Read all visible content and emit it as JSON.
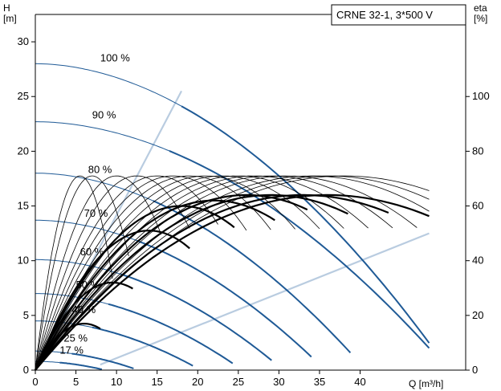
{
  "chart_data": {
    "type": "line",
    "title_box": "CRNE 32-1, 3*500 V",
    "y_left_label": [
      "H",
      "[m]"
    ],
    "y_right_label": [
      "eta",
      "[%]"
    ],
    "x_label": "Q [m³/h]",
    "x_ticks": [
      0,
      5,
      10,
      15,
      20,
      25,
      30,
      35,
      40
    ],
    "y_left_ticks": [
      0,
      5,
      10,
      15,
      20,
      25,
      30
    ],
    "y_right_ticks": [
      0,
      20,
      40,
      60,
      80,
      100
    ],
    "xlim": [
      0,
      53
    ],
    "ylim_left": [
      0,
      32.5
    ],
    "ylim_right": [
      0,
      130
    ],
    "grid": false,
    "colors": {
      "head_curve": "#1f5a96",
      "head_max_curve": "#1f5a96",
      "head_bound": "#b9cce0",
      "eta_curve": "#000000",
      "axis": "#000000"
    },
    "speed_labels": [
      {
        "text": "100 %",
        "x": 8.0,
        "y": 28.2
      },
      {
        "text": "90 %",
        "x": 7.0,
        "y": 23.0
      },
      {
        "text": "80 %",
        "x": 6.5,
        "y": 18.0
      },
      {
        "text": "70 %",
        "x": 6.0,
        "y": 14.0
      },
      {
        "text": "60 %",
        "x": 5.5,
        "y": 10.5
      },
      {
        "text": "50 %",
        "x": 5.0,
        "y": 7.5
      },
      {
        "text": "40 %",
        "x": 4.5,
        "y": 5.2
      },
      {
        "text": "25 %",
        "x": 3.5,
        "y": 2.6
      },
      {
        "text": "17 %",
        "x": 3.0,
        "y": 1.5
      }
    ],
    "head_curves": [
      {
        "name": "100 %",
        "h0": 28.0,
        "qmax": 48.5,
        "qsplit": 18.0
      },
      {
        "name": "90 %",
        "h0": 22.7,
        "qmax": 48.5,
        "qsplit": 16.5
      },
      {
        "name": "80 %",
        "h0": 18.0,
        "qmax": 38.8,
        "qsplit": 14.5
      },
      {
        "name": "70 %",
        "h0": 13.7,
        "qmax": 34.0,
        "qsplit": 12.5
      },
      {
        "name": "60 %",
        "h0": 10.1,
        "qmax": 29.1,
        "qsplit": 10.5
      },
      {
        "name": "50 %",
        "h0": 7.0,
        "qmax": 24.3,
        "qsplit": 9.0
      },
      {
        "name": "40 %",
        "h0": 4.5,
        "qmax": 19.4,
        "qsplit": 7.0
      },
      {
        "name": "25 %",
        "h0": 1.75,
        "qmax": 12.1,
        "qsplit": 4.5
      },
      {
        "name": "17 %",
        "h0": 0.8,
        "qmax": 8.2,
        "qsplit": 3.0
      }
    ],
    "head_curve_100_max": {
      "h0": 28.0,
      "qend": 48.5,
      "hend": 12.5
    },
    "eta_curves": [
      {
        "q0": 0.0,
        "qpeak": 5.5,
        "etapeak": 71,
        "qend": 9.5,
        "bold": false
      },
      {
        "q0": 0.0,
        "qpeak": 7.0,
        "etapeak": 71,
        "qend": 11.5,
        "bold": false
      },
      {
        "q0": 0.0,
        "qpeak": 10.0,
        "etapeak": 71,
        "qend": 15.5,
        "bold": false
      },
      {
        "q0": 0.0,
        "qpeak": 12.5,
        "etapeak": 71,
        "qend": 19.0,
        "bold": false
      },
      {
        "q0": 0.0,
        "qpeak": 15.0,
        "etapeak": 71,
        "qend": 22.5,
        "bold": false
      },
      {
        "q0": 0.0,
        "qpeak": 17.0,
        "etapeak": 71,
        "qend": 26.0,
        "bold": false
      },
      {
        "q0": 0.0,
        "qpeak": 19.0,
        "etapeak": 71,
        "qend": 29.0,
        "bold": false
      },
      {
        "q0": 0.0,
        "qpeak": 21.0,
        "etapeak": 71,
        "qend": 32.0,
        "bold": false
      },
      {
        "q0": 0.0,
        "qpeak": 23.0,
        "etapeak": 71,
        "qend": 35.0,
        "bold": false
      },
      {
        "q0": 0.0,
        "qpeak": 25.0,
        "etapeak": 71,
        "qend": 38.0,
        "bold": false
      },
      {
        "q0": 0.0,
        "qpeak": 27.0,
        "etapeak": 71,
        "qend": 41.0,
        "bold": false
      },
      {
        "q0": 0.0,
        "qpeak": 29.0,
        "etapeak": 71,
        "qend": 44.0,
        "bold": false
      },
      {
        "q0": 0.0,
        "qpeak": 31.0,
        "etapeak": 71,
        "qend": 47.0,
        "bold": false
      },
      {
        "q0": 0.0,
        "qpeak": 34.0,
        "etapeak": 71,
        "qend": 48.5,
        "bold": false
      },
      {
        "q0": 0.0,
        "qpeak": 36.0,
        "etapeak": 71,
        "qend": 48.5,
        "bold": false
      },
      {
        "q0": 0.0,
        "qpeak": 38.0,
        "etapeak": 71,
        "qend": 48.5,
        "bold": false
      },
      {
        "q0": 0.0,
        "qpeak": 6.0,
        "etapeak": 17,
        "qend": 8.0,
        "bold": true
      },
      {
        "q0": 0.0,
        "qpeak": 9.5,
        "etapeak": 32,
        "qend": 12.0,
        "bold": true
      },
      {
        "q0": 0.0,
        "qpeak": 14.0,
        "etapeak": 51,
        "qend": 19.0,
        "bold": true
      },
      {
        "q0": 0.0,
        "qpeak": 18.0,
        "etapeak": 60,
        "qend": 24.5,
        "bold": true
      },
      {
        "q0": 0.0,
        "qpeak": 22.0,
        "etapeak": 62,
        "qend": 29.5,
        "bold": true
      },
      {
        "q0": 0.0,
        "qpeak": 26.0,
        "etapeak": 64,
        "qend": 33.5,
        "bold": true
      },
      {
        "q0": 0.0,
        "qpeak": 29.0,
        "etapeak": 64,
        "qend": 38.5,
        "bold": true
      },
      {
        "q0": 0.0,
        "qpeak": 33.0,
        "etapeak": 64,
        "qend": 43.5,
        "bold": true
      },
      {
        "q0": 0.0,
        "qpeak": 36.0,
        "etapeak": 64,
        "qend": 48.5,
        "bold": true
      }
    ]
  }
}
